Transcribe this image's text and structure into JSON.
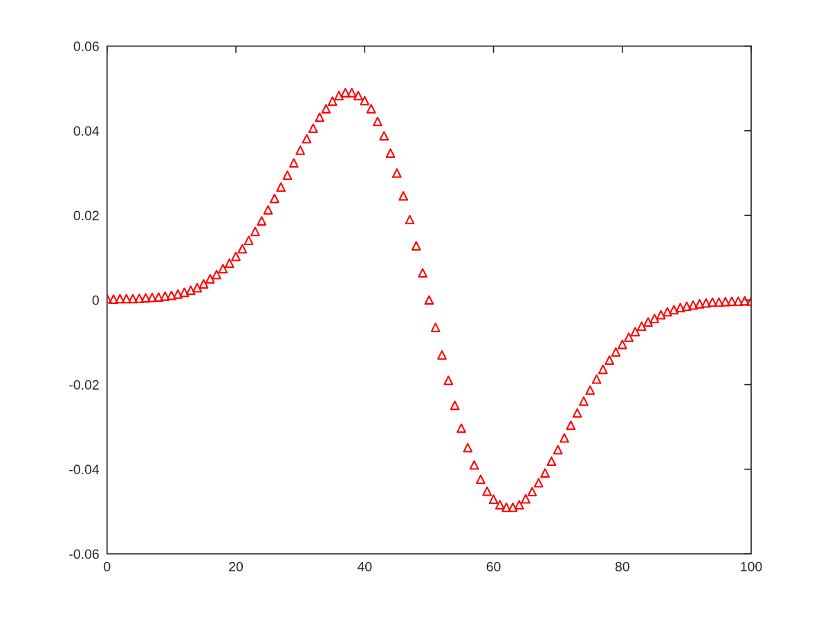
{
  "chart_data": {
    "type": "scatter",
    "marker": "triangle",
    "grid": false,
    "legend": false,
    "xlim": [
      0,
      100
    ],
    "xticks": [
      0,
      20,
      40,
      60,
      80,
      100
    ],
    "ylim": [
      -0.06,
      0.06
    ],
    "yticks": [
      -0.06,
      -0.04,
      -0.02,
      0,
      0.02,
      0.04,
      0.06
    ],
    "x": [
      0,
      1,
      2,
      3,
      4,
      5,
      6,
      7,
      8,
      9,
      10,
      11,
      12,
      13,
      14,
      15,
      16,
      17,
      18,
      19,
      20,
      21,
      22,
      23,
      24,
      25,
      26,
      27,
      28,
      29,
      30,
      31,
      32,
      33,
      34,
      35,
      36,
      37,
      38,
      39,
      40,
      41,
      42,
      43,
      44,
      45,
      46,
      47,
      48,
      49,
      50,
      51,
      52,
      53,
      54,
      55,
      56,
      57,
      58,
      59,
      60,
      61,
      62,
      63,
      64,
      65,
      66,
      67,
      68,
      69,
      70,
      71,
      72,
      73,
      74,
      75,
      76,
      77,
      78,
      79,
      80,
      81,
      82,
      83,
      84,
      85,
      86,
      87,
      88,
      89,
      90,
      91,
      92,
      93,
      94,
      95,
      96,
      97,
      98,
      99,
      100
    ],
    "series": [
      {
        "color": "#ff0000",
        "values": [
          0.0003,
          0.0002,
          0.0003,
          0.0003,
          0.0003,
          0.0004,
          0.0005,
          0.0006,
          0.0007,
          0.0009,
          0.0011,
          0.0014,
          0.0018,
          0.0023,
          0.0029,
          0.0038,
          0.005,
          0.006,
          0.0074,
          0.0087,
          0.0103,
          0.0121,
          0.0141,
          0.0162,
          0.0187,
          0.0213,
          0.024,
          0.0267,
          0.0295,
          0.0324,
          0.0354,
          0.0381,
          0.0406,
          0.0432,
          0.0452,
          0.047,
          0.0483,
          0.049,
          0.049,
          0.0483,
          0.0471,
          0.0452,
          0.0422,
          0.0388,
          0.0347,
          0.03,
          0.0246,
          0.019,
          0.0128,
          0.0064,
          0.0,
          -0.0065,
          -0.013,
          -0.019,
          -0.0249,
          -0.0303,
          -0.0349,
          -0.039,
          -0.0424,
          -0.0452,
          -0.0471,
          -0.0484,
          -0.049,
          -0.049,
          -0.0484,
          -0.047,
          -0.0453,
          -0.0432,
          -0.0409,
          -0.0381,
          -0.0354,
          -0.0326,
          -0.0296,
          -0.0267,
          -0.0239,
          -0.0213,
          -0.0187,
          -0.0164,
          -0.0142,
          -0.0123,
          -0.0105,
          -0.0088,
          -0.0075,
          -0.0062,
          -0.0052,
          -0.0044,
          -0.0035,
          -0.0028,
          -0.0023,
          -0.0018,
          -0.0015,
          -0.0012,
          -0.0009,
          -0.0007,
          -0.0005,
          -0.0005,
          -0.0004,
          -0.0003,
          -0.0003,
          -0.0002,
          -0.0003
        ]
      }
    ]
  }
}
